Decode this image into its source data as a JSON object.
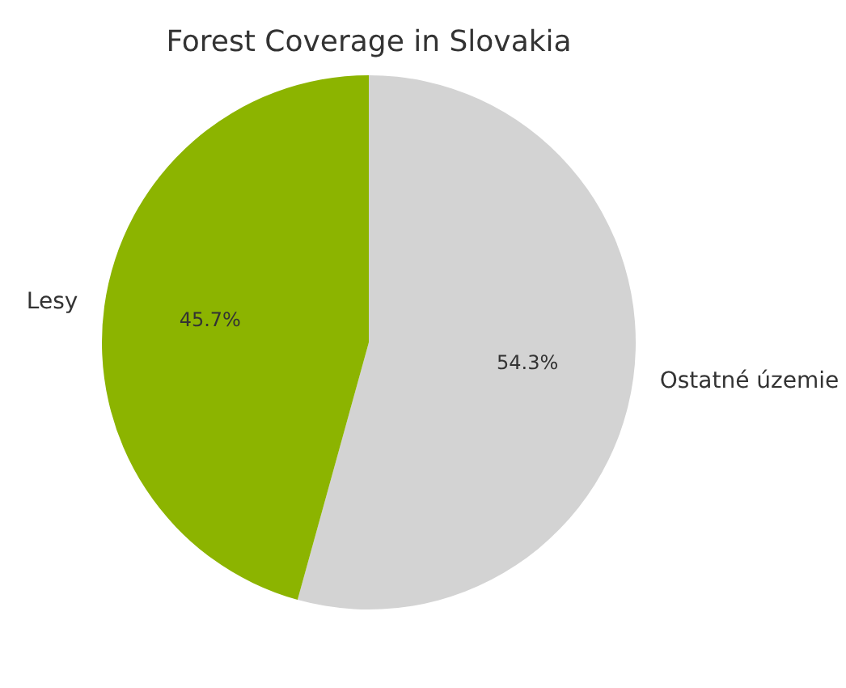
{
  "chart_data": {
    "type": "pie",
    "title": "Forest Coverage in Slovakia",
    "categories": [
      "Ostatné územie",
      "Lesy"
    ],
    "values": [
      54.3,
      45.7
    ],
    "colors": [
      "#d3d3d3",
      "#8cb400"
    ],
    "value_labels": [
      "54.3%",
      "45.7%"
    ],
    "legend": false
  }
}
